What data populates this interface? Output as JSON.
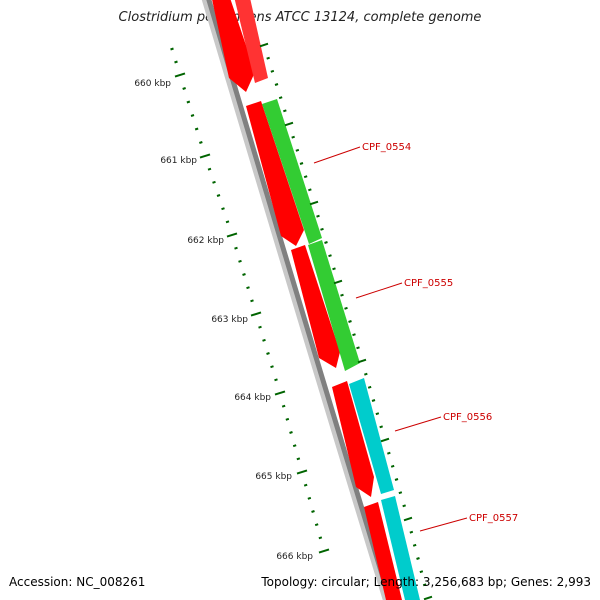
{
  "title": "Clostridium perfringens ATCC 13124, complete genome",
  "accession_text": "Accession: NC_008261",
  "summary_text": "Topology: circular; Length: 3,256,683 bp; Genes: 2,993",
  "colors": {
    "backbone": "#808080",
    "cds": "#ff0000",
    "tick": "#006400",
    "gene_green": "#33cc33",
    "gene_cyan": "#00cccc",
    "label": "#cc0000"
  },
  "scale_ticks": [
    {
      "label": "660 kbp"
    },
    {
      "label": "661 kbp"
    },
    {
      "label": "662 kbp"
    },
    {
      "label": "663 kbp"
    },
    {
      "label": "664 kbp"
    },
    {
      "label": "665 kbp"
    },
    {
      "label": "666 kbp"
    }
  ],
  "gene_labels": [
    {
      "name": "CPF_0554"
    },
    {
      "name": "CPF_0555"
    },
    {
      "name": "CPF_0556"
    },
    {
      "name": "CPF_0557"
    }
  ]
}
